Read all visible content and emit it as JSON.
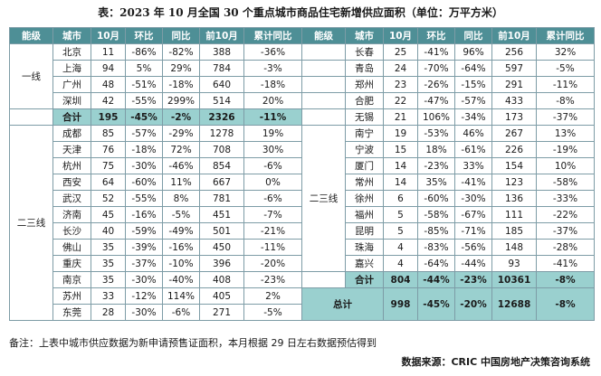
{
  "title": "表：2023 年 10 月全国 30 个重点城市商品住宅新增供应面积（单位：万平方米）",
  "headers": [
    "能级",
    "城市",
    "10月",
    "环比",
    "同比",
    "前10月",
    "累计同比"
  ],
  "tier1_label": "一线",
  "tier23_label": "二三线",
  "tier1_rows": [
    [
      "北京",
      "11",
      "-86%",
      "-82%",
      "388",
      "-36%"
    ],
    [
      "上海",
      "94",
      "5%",
      "29%",
      "784",
      "-3%"
    ],
    [
      "广州",
      "48",
      "-51%",
      "-18%",
      "640",
      "-18%"
    ],
    [
      "深圳",
      "42",
      "-55%",
      "299%",
      "514",
      "20%"
    ]
  ],
  "tier1_sum": [
    "合计",
    "195",
    "-45%",
    "-2%",
    "2326",
    "-11%"
  ],
  "tier23_left_rows": [
    [
      "成都",
      "85",
      "-57%",
      "-29%",
      "1278",
      "19%"
    ],
    [
      "天津",
      "76",
      "-18%",
      "72%",
      "708",
      "30%"
    ],
    [
      "杭州",
      "75",
      "-30%",
      "-46%",
      "854",
      "-6%"
    ],
    [
      "西安",
      "64",
      "-60%",
      "11%",
      "667",
      "0%"
    ],
    [
      "武汉",
      "52",
      "-55%",
      "8%",
      "781",
      "-6%"
    ],
    [
      "济南",
      "45",
      "-16%",
      "-5%",
      "451",
      "-7%"
    ],
    [
      "长沙",
      "40",
      "-59%",
      "-49%",
      "501",
      "-21%"
    ],
    [
      "佛山",
      "35",
      "-39%",
      "-16%",
      "450",
      "-11%"
    ],
    [
      "重庆",
      "35",
      "-37%",
      "-10%",
      "396",
      "-20%"
    ],
    [
      "南京",
      "35",
      "-30%",
      "-40%",
      "408",
      "-23%"
    ],
    [
      "苏州",
      "33",
      "-12%",
      "114%",
      "405",
      "2%"
    ],
    [
      "东莞",
      "28",
      "-30%",
      "-6%",
      "271",
      "-5%"
    ]
  ],
  "right_top_rows": [
    [
      "长春",
      "25",
      "-41%",
      "96%",
      "256",
      "32%"
    ],
    [
      "青岛",
      "24",
      "-70%",
      "-64%",
      "597",
      "-5%"
    ],
    [
      "郑州",
      "23",
      "-26%",
      "-15%",
      "291",
      "-11%"
    ],
    [
      "合肥",
      "22",
      "-47%",
      "-57%",
      "433",
      "-8%"
    ],
    [
      "无锡",
      "21",
      "106%",
      "-34%",
      "173",
      "-37%"
    ]
  ],
  "right_tier23_rows": [
    [
      "南宁",
      "19",
      "-53%",
      "46%",
      "267",
      "13%"
    ],
    [
      "宁波",
      "15",
      "18%",
      "-61%",
      "226",
      "-19%"
    ],
    [
      "厦门",
      "14",
      "-23%",
      "33%",
      "154",
      "10%"
    ],
    [
      "常州",
      "14",
      "35%",
      "-41%",
      "123",
      "-58%"
    ],
    [
      "徐州",
      "6",
      "-60%",
      "-30%",
      "136",
      "-33%"
    ],
    [
      "福州",
      "5",
      "-58%",
      "-67%",
      "111",
      "-22%"
    ],
    [
      "昆明",
      "5",
      "-85%",
      "-71%",
      "185",
      "-37%"
    ],
    [
      "珠海",
      "4",
      "-83%",
      "-56%",
      "148",
      "-28%"
    ],
    [
      "嘉兴",
      "4",
      "-64%",
      "-44%",
      "93",
      "-41%"
    ]
  ],
  "right_sum": [
    "合计",
    "804",
    "-44%",
    "-23%",
    "10361",
    "-8%"
  ],
  "grand_total": [
    "总计",
    "998",
    "-45%",
    "-20%",
    "12688",
    "-8%"
  ],
  "note": "备注：上表中城市供应数据为新申请预售证面积，本月根据 29 日左右数据预估得到",
  "source": "数据来源：CRIC 中国房地产决策咨询系统",
  "colors": {
    "header_bg": "#4e8f96",
    "sum_bg": "#9ad0cf",
    "border": "#7d9ca6"
  }
}
